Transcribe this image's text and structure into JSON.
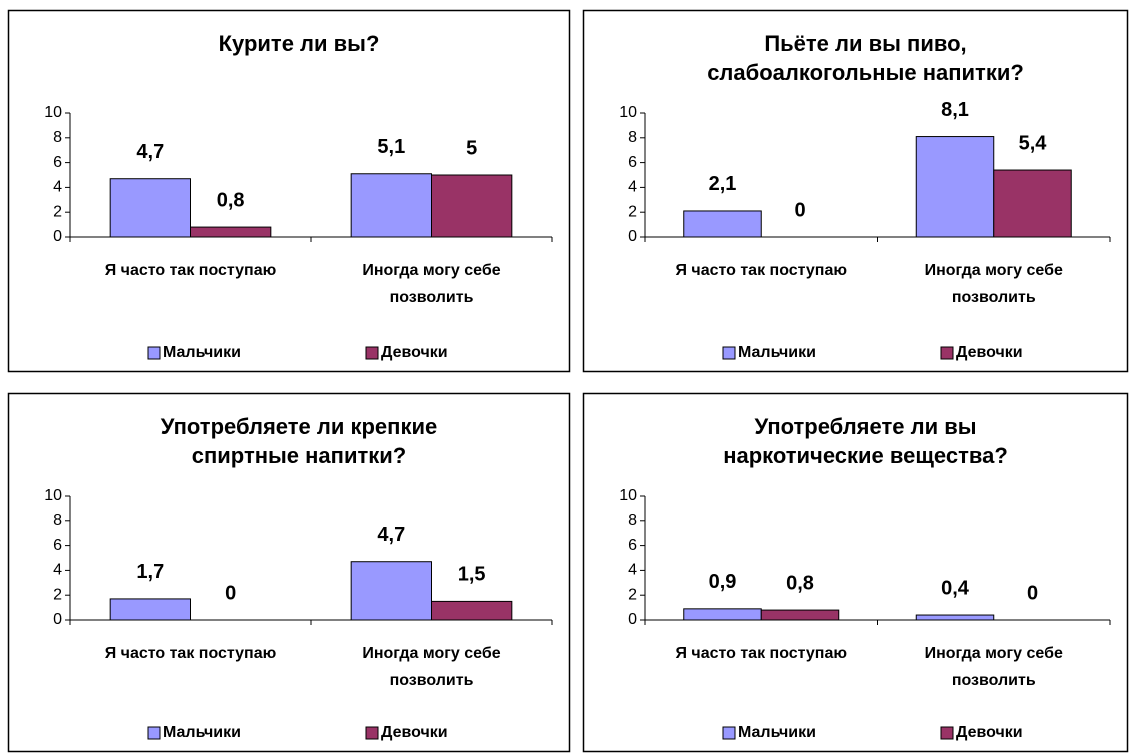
{
  "chart_data": [
    {
      "type": "bar",
      "title": "Курите ли вы?",
      "categories": [
        "Я часто так поступаю",
        "Иногда могу себе позволить"
      ],
      "series": [
        {
          "name": "Мальчики",
          "color": "#9999ff",
          "values": [
            4.7,
            5.1
          ],
          "value_labels": [
            "4,7",
            "5,1"
          ]
        },
        {
          "name": "Девочки",
          "color": "#993366",
          "values": [
            0.8,
            5
          ],
          "value_labels": [
            "0,8",
            "5"
          ]
        }
      ],
      "ylim": [
        0,
        10
      ],
      "yticks": [
        0,
        2,
        4,
        6,
        8,
        10
      ],
      "legend": "bottom"
    },
    {
      "type": "bar",
      "title": "Пьёте ли вы пиво, слабоалкогольные напитки?",
      "categories": [
        "Я часто так поступаю",
        "Иногда могу себе позволить"
      ],
      "series": [
        {
          "name": "Мальчики",
          "color": "#9999ff",
          "values": [
            2.1,
            8.1
          ],
          "value_labels": [
            "2,1",
            "8,1"
          ]
        },
        {
          "name": "Девочки",
          "color": "#993366",
          "values": [
            0,
            5.4
          ],
          "value_labels": [
            "0",
            "5,4"
          ]
        }
      ],
      "ylim": [
        0,
        10
      ],
      "yticks": [
        0,
        2,
        4,
        6,
        8,
        10
      ],
      "legend": "bottom"
    },
    {
      "type": "bar",
      "title": "Употребляете ли крепкие спиртные напитки?",
      "categories": [
        "Я часто так поступаю",
        "Иногда могу себе позволить"
      ],
      "series": [
        {
          "name": "Мальчики",
          "color": "#9999ff",
          "values": [
            1.7,
            4.7
          ],
          "value_labels": [
            "1,7",
            "4,7"
          ]
        },
        {
          "name": "Девочки",
          "color": "#993366",
          "values": [
            0,
            1.5
          ],
          "value_labels": [
            "0",
            "1,5"
          ]
        }
      ],
      "ylim": [
        0,
        10
      ],
      "yticks": [
        0,
        2,
        4,
        6,
        8,
        10
      ],
      "legend": "bottom"
    },
    {
      "type": "bar",
      "title": "Употребляете ли вы наркотические вещества?",
      "categories": [
        "Я часто так поступаю",
        "Иногда могу себе позволить"
      ],
      "series": [
        {
          "name": "Мальчики",
          "color": "#9999ff",
          "values": [
            0.9,
            0.4
          ],
          "value_labels": [
            "0,9",
            "0,4"
          ]
        },
        {
          "name": "Девочки",
          "color": "#993366",
          "values": [
            0.8,
            0
          ],
          "value_labels": [
            "0,8",
            "0"
          ]
        }
      ],
      "ylim": [
        0,
        10
      ],
      "yticks": [
        0,
        2,
        4,
        6,
        8,
        10
      ],
      "legend": "bottom"
    }
  ]
}
